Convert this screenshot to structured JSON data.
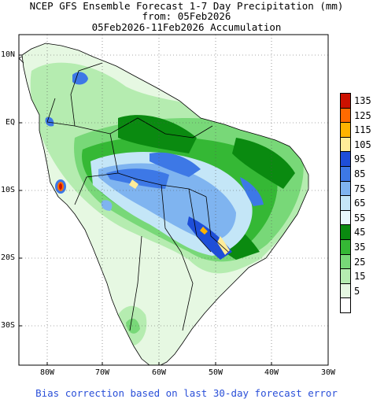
{
  "title_lines": [
    "NCEP GFS Ensemble Forecast 1-7 Day Precipitation (mm)",
    "from: 05Feb2026",
    "05Feb2026-11Feb2026 Accumulation"
  ],
  "map": {
    "lat_labels": [
      "10N",
      "EQ",
      "10S",
      "20S",
      "30S"
    ],
    "lon_labels": [
      "80W",
      "70W",
      "60W",
      "50W",
      "40W",
      "30W"
    ],
    "region": "South America",
    "grid": "dotted"
  },
  "legend": {
    "levels": [
      {
        "label": "135",
        "color": "#cc1100"
      },
      {
        "label": "125",
        "color": "#ff6a00"
      },
      {
        "label": "115",
        "color": "#ffb300"
      },
      {
        "label": "105",
        "color": "#ffec99"
      },
      {
        "label": "95",
        "color": "#1e4ed8"
      },
      {
        "label": "85",
        "color": "#3d78e6"
      },
      {
        "label": "75",
        "color": "#7fb4f0"
      },
      {
        "label": "65",
        "color": "#c4e6f7"
      },
      {
        "label": "55",
        "color": "#e8f7fb"
      },
      {
        "label": "45",
        "color": "#0a8a10"
      },
      {
        "label": "35",
        "color": "#35b835"
      },
      {
        "label": "25",
        "color": "#78d878"
      },
      {
        "label": "15",
        "color": "#b5ecb0"
      },
      {
        "label": "5",
        "color": "#e6f8e2"
      },
      {
        "label": "",
        "color": "#ffffff"
      }
    ]
  },
  "footer": "Bias correction based on last 30-day forecast error"
}
